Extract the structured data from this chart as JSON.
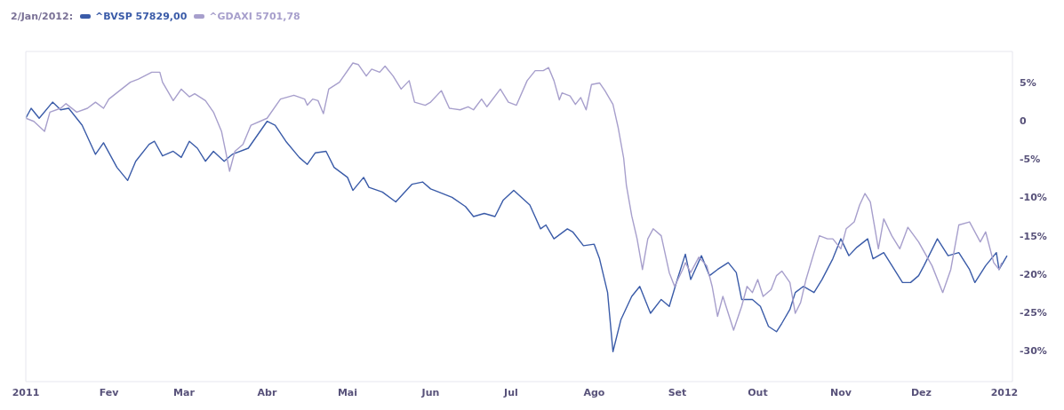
{
  "chart_data": {
    "type": "line",
    "legend_title": "2/Jan/2012:",
    "legend": "top left",
    "grid": false,
    "marker": "none",
    "line_style": "solid",
    "xlim": [
      "2011-01-01",
      "2012-01-04"
    ],
    "xticks": [
      {
        "value": "2011-01-01",
        "label": "2011"
      },
      {
        "value": "2011-02-01",
        "label": "Fev"
      },
      {
        "value": "2011-03-01",
        "label": "Mar"
      },
      {
        "value": "2011-04-01",
        "label": "Abr"
      },
      {
        "value": "2011-05-01",
        "label": "Mai"
      },
      {
        "value": "2011-06-01",
        "label": "Jun"
      },
      {
        "value": "2011-07-01",
        "label": "Jul"
      },
      {
        "value": "2011-08-01",
        "label": "Ago"
      },
      {
        "value": "2011-09-01",
        "label": "Set"
      },
      {
        "value": "2011-10-01",
        "label": "Out"
      },
      {
        "value": "2011-11-01",
        "label": "Nov"
      },
      {
        "value": "2011-12-01",
        "label": "Dez"
      },
      {
        "value": "2012-01-01",
        "label": "2012"
      }
    ],
    "ylim": [
      -34,
      9
    ],
    "yticks": [
      {
        "value": 5,
        "label": "5%"
      },
      0,
      {
        "value": -5,
        "label": "-5%"
      },
      {
        "value": -10,
        "label": "-10%"
      },
      {
        "value": -15,
        "label": "-15%"
      },
      {
        "value": -20,
        "label": "-20%"
      },
      {
        "value": -25,
        "label": "-25%"
      },
      {
        "value": -30,
        "label": "-30%"
      }
    ],
    "series": [
      {
        "name": "^BVSP 57829,00",
        "color": "#3a5ba8",
        "x": [
          "2011-01-01",
          "2011-01-03",
          "2011-01-06",
          "2011-01-11",
          "2011-01-14",
          "2011-01-17",
          "2011-01-22",
          "2011-01-27",
          "2011-01-30",
          "2011-02-04",
          "2011-02-08",
          "2011-02-11",
          "2011-02-16",
          "2011-02-18",
          "2011-02-21",
          "2011-02-25",
          "2011-02-28",
          "2011-03-03",
          "2011-03-06",
          "2011-03-09",
          "2011-03-12",
          "2011-03-16",
          "2011-03-19",
          "2011-03-25",
          "2011-04-01",
          "2011-04-04",
          "2011-04-08",
          "2011-04-13",
          "2011-04-16",
          "2011-04-19",
          "2011-04-23",
          "2011-04-26",
          "2011-05-01",
          "2011-05-03",
          "2011-05-07",
          "2011-05-09",
          "2011-05-14",
          "2011-05-19",
          "2011-05-25",
          "2011-05-29",
          "2011-06-01",
          "2011-06-04",
          "2011-06-09",
          "2011-06-14",
          "2011-06-17",
          "2011-06-21",
          "2011-06-25",
          "2011-06-28",
          "2011-07-02",
          "2011-07-08",
          "2011-07-12",
          "2011-07-14",
          "2011-07-17",
          "2011-07-22",
          "2011-07-24",
          "2011-07-28",
          "2011-08-01",
          "2011-08-03",
          "2011-08-06",
          "2011-08-08",
          "2011-08-11",
          "2011-08-15",
          "2011-08-18",
          "2011-08-22",
          "2011-08-26",
          "2011-08-29",
          "2011-09-01",
          "2011-09-04",
          "2011-09-06",
          "2011-09-10",
          "2011-09-13",
          "2011-09-16",
          "2011-09-20",
          "2011-09-23",
          "2011-09-25",
          "2011-09-29",
          "2011-10-02",
          "2011-10-05",
          "2011-10-08",
          "2011-10-10",
          "2011-10-13",
          "2011-10-15",
          "2011-10-18",
          "2011-10-22",
          "2011-10-25",
          "2011-10-29",
          "2011-11-01",
          "2011-11-04",
          "2011-11-07",
          "2011-11-11",
          "2011-11-13",
          "2011-11-17",
          "2011-11-24",
          "2011-11-27",
          "2011-11-30",
          "2011-12-02",
          "2011-12-07",
          "2011-12-11",
          "2011-12-15",
          "2011-12-19",
          "2011-12-21",
          "2011-12-25",
          "2011-12-29",
          "2011-12-30",
          "2012-01-02"
        ],
        "values": [
          0.3,
          1.6,
          0.3,
          2.4,
          1.4,
          1.6,
          -0.6,
          -4.4,
          -2.9,
          -6.1,
          -7.8,
          -5.3,
          -3.1,
          -2.7,
          -4.6,
          -4.0,
          -4.8,
          -2.7,
          -3.6,
          -5.3,
          -4.0,
          -5.3,
          -4.4,
          -3.6,
          -0.1,
          -0.6,
          -2.7,
          -4.8,
          -5.7,
          -4.2,
          -4.0,
          -6.1,
          -7.4,
          -9.1,
          -7.4,
          -8.7,
          -9.3,
          -10.6,
          -8.3,
          -8.0,
          -8.9,
          -9.3,
          -10.0,
          -11.2,
          -12.5,
          -12.1,
          -12.5,
          -10.4,
          -9.1,
          -11.0,
          -14.1,
          -13.6,
          -15.4,
          -14.1,
          -14.5,
          -16.3,
          -16.1,
          -18.0,
          -22.4,
          -30.1,
          -25.9,
          -22.9,
          -21.6,
          -25.1,
          -23.3,
          -24.2,
          -20.7,
          -17.4,
          -20.7,
          -17.6,
          -20.2,
          -19.4,
          -18.5,
          -19.8,
          -23.3,
          -23.3,
          -24.2,
          -26.8,
          -27.5,
          -26.4,
          -24.6,
          -22.4,
          -21.6,
          -22.4,
          -20.7,
          -18.0,
          -15.4,
          -17.6,
          -16.5,
          -15.4,
          -18.0,
          -17.2,
          -21.1,
          -21.1,
          -20.2,
          -18.9,
          -15.4,
          -17.6,
          -17.2,
          -19.4,
          -21.1,
          -18.9,
          -17.2,
          -19.4,
          -17.6
        ]
      },
      {
        "name": "^GDAXI 5701,78",
        "color": "#a79fcc",
        "x": [
          "2011-01-01",
          "2011-01-04",
          "2011-01-08",
          "2011-01-10",
          "2011-01-14",
          "2011-01-16",
          "2011-01-20",
          "2011-01-24",
          "2011-01-27",
          "2011-01-30",
          "2011-02-01",
          "2011-02-09",
          "2011-02-12",
          "2011-02-17",
          "2011-02-20",
          "2011-02-21",
          "2011-02-25",
          "2011-02-28",
          "2011-03-03",
          "2011-03-05",
          "2011-03-09",
          "2011-03-12",
          "2011-03-15",
          "2011-03-17",
          "2011-03-18",
          "2011-03-20",
          "2011-03-23",
          "2011-03-26",
          "2011-04-01",
          "2011-04-06",
          "2011-04-11",
          "2011-04-15",
          "2011-04-16",
          "2011-04-18",
          "2011-04-20",
          "2011-04-22",
          "2011-04-24",
          "2011-04-28",
          "2011-05-03",
          "2011-05-05",
          "2011-05-08",
          "2011-05-10",
          "2011-05-13",
          "2011-05-15",
          "2011-05-18",
          "2011-05-21",
          "2011-05-24",
          "2011-05-26",
          "2011-05-30",
          "2011-06-01",
          "2011-06-05",
          "2011-06-08",
          "2011-06-12",
          "2011-06-15",
          "2011-06-17",
          "2011-06-20",
          "2011-06-22",
          "2011-06-27",
          "2011-06-30",
          "2011-07-03",
          "2011-07-07",
          "2011-07-10",
          "2011-07-13",
          "2011-07-15",
          "2011-07-17",
          "2011-07-19",
          "2011-07-20",
          "2011-07-23",
          "2011-07-25",
          "2011-07-27",
          "2011-07-29",
          "2011-07-31",
          "2011-08-03",
          "2011-08-05",
          "2011-08-08",
          "2011-08-10",
          "2011-08-12",
          "2011-08-13",
          "2011-08-15",
          "2011-08-17",
          "2011-08-19",
          "2011-08-21",
          "2011-08-23",
          "2011-08-26",
          "2011-08-29",
          "2011-08-31",
          "2011-09-03",
          "2011-09-04",
          "2011-09-06",
          "2011-09-09",
          "2011-09-12",
          "2011-09-14",
          "2011-09-16",
          "2011-09-18",
          "2011-09-20",
          "2011-09-22",
          "2011-09-25",
          "2011-09-27",
          "2011-09-29",
          "2011-10-01",
          "2011-10-03",
          "2011-10-06",
          "2011-10-08",
          "2011-10-10",
          "2011-10-13",
          "2011-10-15",
          "2011-10-17",
          "2011-10-19",
          "2011-10-22",
          "2011-10-24",
          "2011-10-27",
          "2011-10-29",
          "2011-11-01",
          "2011-11-03",
          "2011-11-06",
          "2011-11-08",
          "2011-11-10",
          "2011-11-12",
          "2011-11-15",
          "2011-11-17",
          "2011-11-20",
          "2011-11-23",
          "2011-11-26",
          "2011-11-30",
          "2011-12-05",
          "2011-12-09",
          "2011-12-12",
          "2011-12-15",
          "2011-12-19",
          "2011-12-23",
          "2011-12-25",
          "2011-12-28",
          "2011-12-30",
          "2011-12-31"
        ],
        "values": [
          0.3,
          -0.1,
          -1.4,
          1.1,
          1.6,
          2.2,
          1.1,
          1.6,
          2.4,
          1.6,
          2.8,
          5.0,
          5.4,
          6.3,
          6.3,
          5.0,
          2.6,
          4.1,
          3.1,
          3.5,
          2.6,
          1.1,
          -1.4,
          -4.8,
          -6.6,
          -4.0,
          -3.1,
          -0.6,
          0.3,
          2.8,
          3.3,
          2.8,
          2.0,
          2.8,
          2.6,
          0.9,
          4.1,
          5.0,
          7.5,
          7.3,
          5.8,
          6.7,
          6.3,
          7.1,
          5.8,
          4.1,
          5.2,
          2.4,
          2.0,
          2.4,
          3.9,
          1.6,
          1.4,
          1.8,
          1.4,
          2.8,
          1.8,
          4.1,
          2.4,
          2.0,
          5.2,
          6.5,
          6.5,
          6.9,
          5.2,
          2.7,
          3.6,
          3.2,
          2.1,
          3.0,
          1.4,
          4.7,
          4.9,
          3.9,
          2.1,
          -1.0,
          -4.9,
          -8.4,
          -12.4,
          -15.4,
          -19.4,
          -15.4,
          -14.1,
          -15.0,
          -19.8,
          -21.6,
          -19.4,
          -18.5,
          -19.8,
          -17.8,
          -18.9,
          -21.6,
          -25.5,
          -22.9,
          -25.1,
          -27.3,
          -24.2,
          -21.6,
          -22.4,
          -20.7,
          -22.9,
          -22.0,
          -20.2,
          -19.6,
          -21.1,
          -25.1,
          -23.7,
          -20.7,
          -17.2,
          -15.0,
          -15.4,
          -15.4,
          -16.7,
          -14.1,
          -13.2,
          -11.0,
          -9.5,
          -10.6,
          -16.7,
          -12.8,
          -15.0,
          -16.7,
          -13.9,
          -15.8,
          -18.9,
          -22.4,
          -19.4,
          -13.6,
          -13.2,
          -15.8,
          -14.5,
          -18.5,
          -19.4,
          -18.5
        ]
      }
    ]
  }
}
